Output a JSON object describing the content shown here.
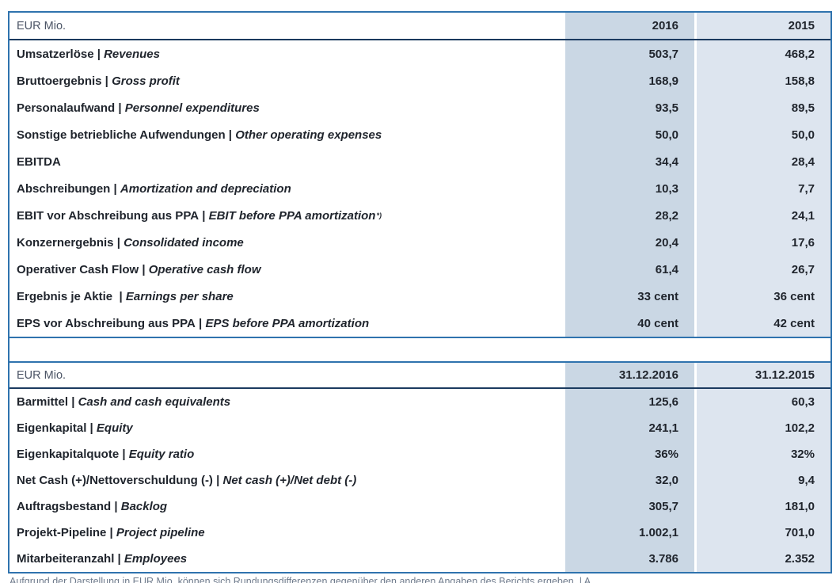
{
  "colors": {
    "frame_border_blue": "#2f73ae",
    "header_underline_navy": "#1b3a5f",
    "col_2016_bg": "#cad7e4",
    "col_2015_bg": "#dde5ef",
    "text_dark": "#20252d",
    "unit_text_gray": "#4c5566",
    "footnote_gray": "#6f7b8c"
  },
  "tables": [
    {
      "unit_label": "EUR Mio.",
      "columns": [
        "2016",
        "2015"
      ],
      "rows": [
        {
          "de": "Umsatzerlöse",
          "sep": " | ",
          "en": "Revenues",
          "v1": "503,7",
          "v2": "468,2"
        },
        {
          "de": "Bruttoergebnis",
          "sep": " | ",
          "en": "Gross profit",
          "v1": "168,9",
          "v2": "158,8"
        },
        {
          "de": "Personalaufwand",
          "sep": " | ",
          "en": "Personnel expenditures",
          "v1": "93,5",
          "v2": "89,5"
        },
        {
          "de": "Sonstige betriebliche Aufwendungen",
          "sep": " | ",
          "en": "Other operating expenses",
          "v1": "50,0",
          "v2": "50,0"
        },
        {
          "de": "EBITDA",
          "sep": "",
          "en": "",
          "v1": "34,4",
          "v2": "28,4"
        },
        {
          "de": "Abschreibungen",
          "sep": " | ",
          "en": "Amortization and depreciation",
          "v1": "10,3",
          "v2": "7,7"
        },
        {
          "de": "EBIT vor Abschreibung aus PPA",
          "sep": " | ",
          "en": "EBIT before PPA amortization",
          "sup": "*)",
          "v1": "28,2",
          "v2": "24,1"
        },
        {
          "de": "Konzernergebnis",
          "sep": " | ",
          "en": "Consolidated income",
          "v1": "20,4",
          "v2": "17,6"
        },
        {
          "de": "Operativer Cash Flow",
          "sep": " | ",
          "en": "Operative cash flow",
          "v1": "61,4",
          "v2": "26,7"
        },
        {
          "de": "Ergebnis je Aktie",
          "sep": "  | ",
          "en": "Earnings per share",
          "v1": "33 cent",
          "v2": "36 cent"
        },
        {
          "de": "EPS vor Abschreibung aus PPA",
          "sep": " | ",
          "en": "EPS before PPA amortization",
          "v1": "40 cent",
          "v2": "42 cent"
        }
      ]
    },
    {
      "unit_label": "EUR Mio.",
      "columns": [
        "31.12.2016",
        "31.12.2015"
      ],
      "rows": [
        {
          "de": "Barmittel",
          "sep": " | ",
          "en": "Cash and cash equivalents",
          "v1": "125,6",
          "v2": "60,3"
        },
        {
          "de": "Eigenkapital",
          "sep": " | ",
          "en": "Equity",
          "v1": "241,1",
          "v2": "102,2"
        },
        {
          "de": "Eigenkapitalquote",
          "sep": " | ",
          "en": "Equity ratio",
          "v1": "36%",
          "v2": "32%"
        },
        {
          "de": "Net Cash (+)/Nettoverschuldung (-)",
          "sep": " | ",
          "en": "Net cash (+)/Net debt (-)",
          "v1": "32,0",
          "v2": "9,4"
        },
        {
          "de": "Auftragsbestand",
          "sep": " | ",
          "en": "Backlog",
          "v1": "305,7",
          "v2": "181,0"
        },
        {
          "de": "Projekt-Pipeline",
          "sep": " | ",
          "en": "Project pipeline",
          "v1": "1.002,1",
          "v2": "701,0"
        },
        {
          "de": "Mitarbeiteranzahl",
          "sep": " | ",
          "en": "Employees",
          "v1": "3.786",
          "v2": "2.352"
        }
      ]
    }
  ],
  "footnote": "Aufgrund der Darstellung in EUR Mio. können sich Rundungsdifferenzen gegenüber den anderen Angaben des Berichts ergeben. | A"
}
